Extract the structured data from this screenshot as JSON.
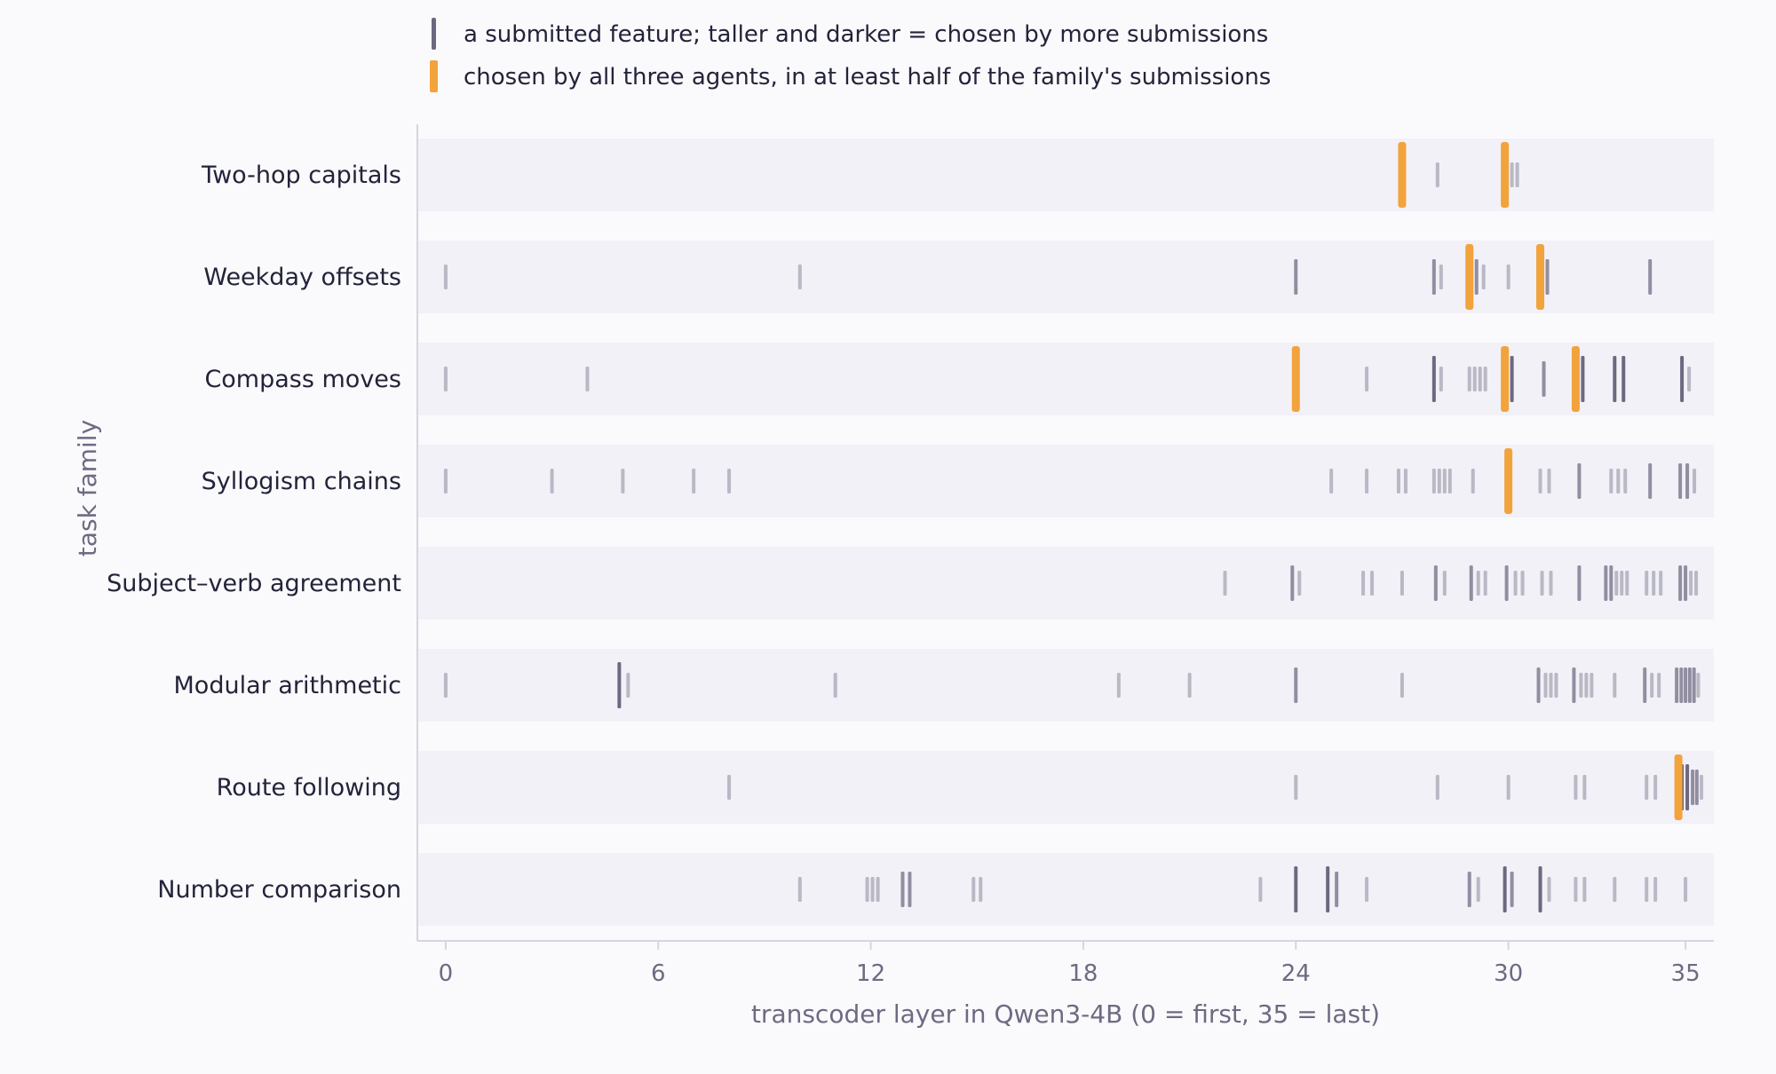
{
  "chart_data": {
    "type": "strip",
    "title": "",
    "xlabel": "transcoder layer in Qwen3-4B (0 = first, 35 = last)",
    "ylabel": "task family",
    "xlim": [
      -0.8,
      35.8
    ],
    "xticks": [
      0,
      6,
      12,
      18,
      24,
      30,
      35
    ],
    "grid": false,
    "legend_placement": "top-left",
    "legend": [
      {
        "kind": "submitted",
        "label": "a submitted feature; taller and darker = chosen by more submissions"
      },
      {
        "kind": "consensus",
        "label": "chosen by all three agents, in at least half of the family's submissions"
      }
    ],
    "colors": {
      "submitted": "#6b6880",
      "consensus": "#f2a33c",
      "band": "#f2f1f7",
      "axis": "#d6d5e0"
    },
    "families": [
      {
        "name": "Two-hop capitals",
        "marks": [
          [
            27,
            3,
            true
          ],
          [
            28,
            1
          ],
          [
            29.9,
            3,
            true
          ],
          [
            30.1,
            1
          ],
          [
            30.25,
            1
          ]
        ]
      },
      {
        "name": "Weekday offsets",
        "marks": [
          [
            0,
            1
          ],
          [
            10,
            1
          ],
          [
            24,
            2
          ],
          [
            27.9,
            2
          ],
          [
            28.1,
            1
          ],
          [
            28.9,
            3,
            true
          ],
          [
            29.1,
            2
          ],
          [
            29.3,
            1
          ],
          [
            30,
            1
          ],
          [
            30.9,
            3,
            true
          ],
          [
            31.1,
            2
          ],
          [
            34,
            2
          ]
        ]
      },
      {
        "name": "Compass moves",
        "marks": [
          [
            0,
            1
          ],
          [
            4,
            1
          ],
          [
            24,
            3,
            true
          ],
          [
            26,
            1
          ],
          [
            27.9,
            3
          ],
          [
            28.1,
            1
          ],
          [
            28.9,
            1
          ],
          [
            29.05,
            1
          ],
          [
            29.2,
            1
          ],
          [
            29.35,
            1
          ],
          [
            29.9,
            3,
            true
          ],
          [
            30.1,
            3
          ],
          [
            31,
            2
          ],
          [
            31.9,
            3,
            true
          ],
          [
            32.1,
            3
          ],
          [
            33,
            3
          ],
          [
            33.25,
            3
          ],
          [
            34.9,
            3
          ],
          [
            35.1,
            1
          ]
        ]
      },
      {
        "name": "Syllogism chains",
        "marks": [
          [
            0,
            1
          ],
          [
            3,
            1
          ],
          [
            5,
            1
          ],
          [
            7,
            1
          ],
          [
            8,
            1
          ],
          [
            25,
            1
          ],
          [
            26,
            1
          ],
          [
            26.9,
            1
          ],
          [
            27.1,
            1
          ],
          [
            27.9,
            1
          ],
          [
            28.05,
            1
          ],
          [
            28.2,
            1
          ],
          [
            28.35,
            1
          ],
          [
            29,
            1
          ],
          [
            30,
            3,
            true
          ],
          [
            30.9,
            1
          ],
          [
            31.15,
            1
          ],
          [
            32,
            2
          ],
          [
            32.9,
            1
          ],
          [
            33.1,
            1
          ],
          [
            33.3,
            1
          ],
          [
            34,
            2
          ],
          [
            34.85,
            2
          ],
          [
            35.05,
            2
          ],
          [
            35.25,
            1
          ]
        ]
      },
      {
        "name": "Subject–verb agreement",
        "marks": [
          [
            22,
            1
          ],
          [
            23.9,
            2
          ],
          [
            24.1,
            1
          ],
          [
            25.9,
            1
          ],
          [
            26.15,
            1
          ],
          [
            27,
            1
          ],
          [
            27.95,
            2
          ],
          [
            28.2,
            1
          ],
          [
            28.95,
            2
          ],
          [
            29.15,
            1
          ],
          [
            29.35,
            1
          ],
          [
            29.95,
            2
          ],
          [
            30.2,
            1
          ],
          [
            30.4,
            1
          ],
          [
            30.95,
            1
          ],
          [
            31.2,
            1
          ],
          [
            32,
            2
          ],
          [
            32.75,
            2
          ],
          [
            32.9,
            2
          ],
          [
            33.05,
            1
          ],
          [
            33.2,
            1
          ],
          [
            33.35,
            1
          ],
          [
            33.9,
            1
          ],
          [
            34.1,
            1
          ],
          [
            34.3,
            1
          ],
          [
            34.85,
            2
          ],
          [
            35,
            2
          ],
          [
            35.15,
            1
          ],
          [
            35.3,
            1
          ]
        ]
      },
      {
        "name": "Modular arithmetic",
        "marks": [
          [
            0,
            1
          ],
          [
            4.9,
            3
          ],
          [
            5.15,
            1
          ],
          [
            11,
            1
          ],
          [
            19,
            1
          ],
          [
            21,
            1
          ],
          [
            24,
            2
          ],
          [
            27,
            1
          ],
          [
            30.85,
            2
          ],
          [
            31.05,
            1
          ],
          [
            31.2,
            1
          ],
          [
            31.35,
            1
          ],
          [
            31.85,
            2
          ],
          [
            32.05,
            1
          ],
          [
            32.2,
            1
          ],
          [
            32.35,
            1
          ],
          [
            33,
            1
          ],
          [
            33.85,
            2
          ],
          [
            34.05,
            1
          ],
          [
            34.25,
            1
          ],
          [
            34.75,
            2
          ],
          [
            34.88,
            2
          ],
          [
            35.0,
            2
          ],
          [
            35.12,
            2
          ],
          [
            35.24,
            2
          ],
          [
            35.36,
            1
          ]
        ]
      },
      {
        "name": "Route following",
        "marks": [
          [
            8,
            1
          ],
          [
            24,
            1
          ],
          [
            28,
            1
          ],
          [
            30,
            1
          ],
          [
            31.9,
            1
          ],
          [
            32.15,
            1
          ],
          [
            33.9,
            1
          ],
          [
            34.15,
            1
          ],
          [
            34.9,
            3
          ],
          [
            35.05,
            3
          ],
          [
            35.2,
            2
          ],
          [
            35.32,
            2
          ],
          [
            35.45,
            1
          ],
          [
            34.8,
            3,
            true
          ]
        ]
      },
      {
        "name": "Number comparison",
        "marks": [
          [
            10,
            1
          ],
          [
            11.9,
            1
          ],
          [
            12.05,
            1
          ],
          [
            12.2,
            1
          ],
          [
            12.9,
            2
          ],
          [
            13.1,
            2
          ],
          [
            14.9,
            1
          ],
          [
            15.1,
            1
          ],
          [
            23,
            1
          ],
          [
            24,
            3
          ],
          [
            24.9,
            3
          ],
          [
            25.15,
            2
          ],
          [
            26,
            1
          ],
          [
            28.9,
            2
          ],
          [
            29.15,
            1
          ],
          [
            29.9,
            3
          ],
          [
            30.1,
            2
          ],
          [
            30.9,
            3
          ],
          [
            31.15,
            1
          ],
          [
            31.9,
            1
          ],
          [
            32.15,
            1
          ],
          [
            33,
            1
          ],
          [
            33.9,
            1
          ],
          [
            34.15,
            1
          ],
          [
            35,
            1
          ]
        ]
      }
    ]
  }
}
